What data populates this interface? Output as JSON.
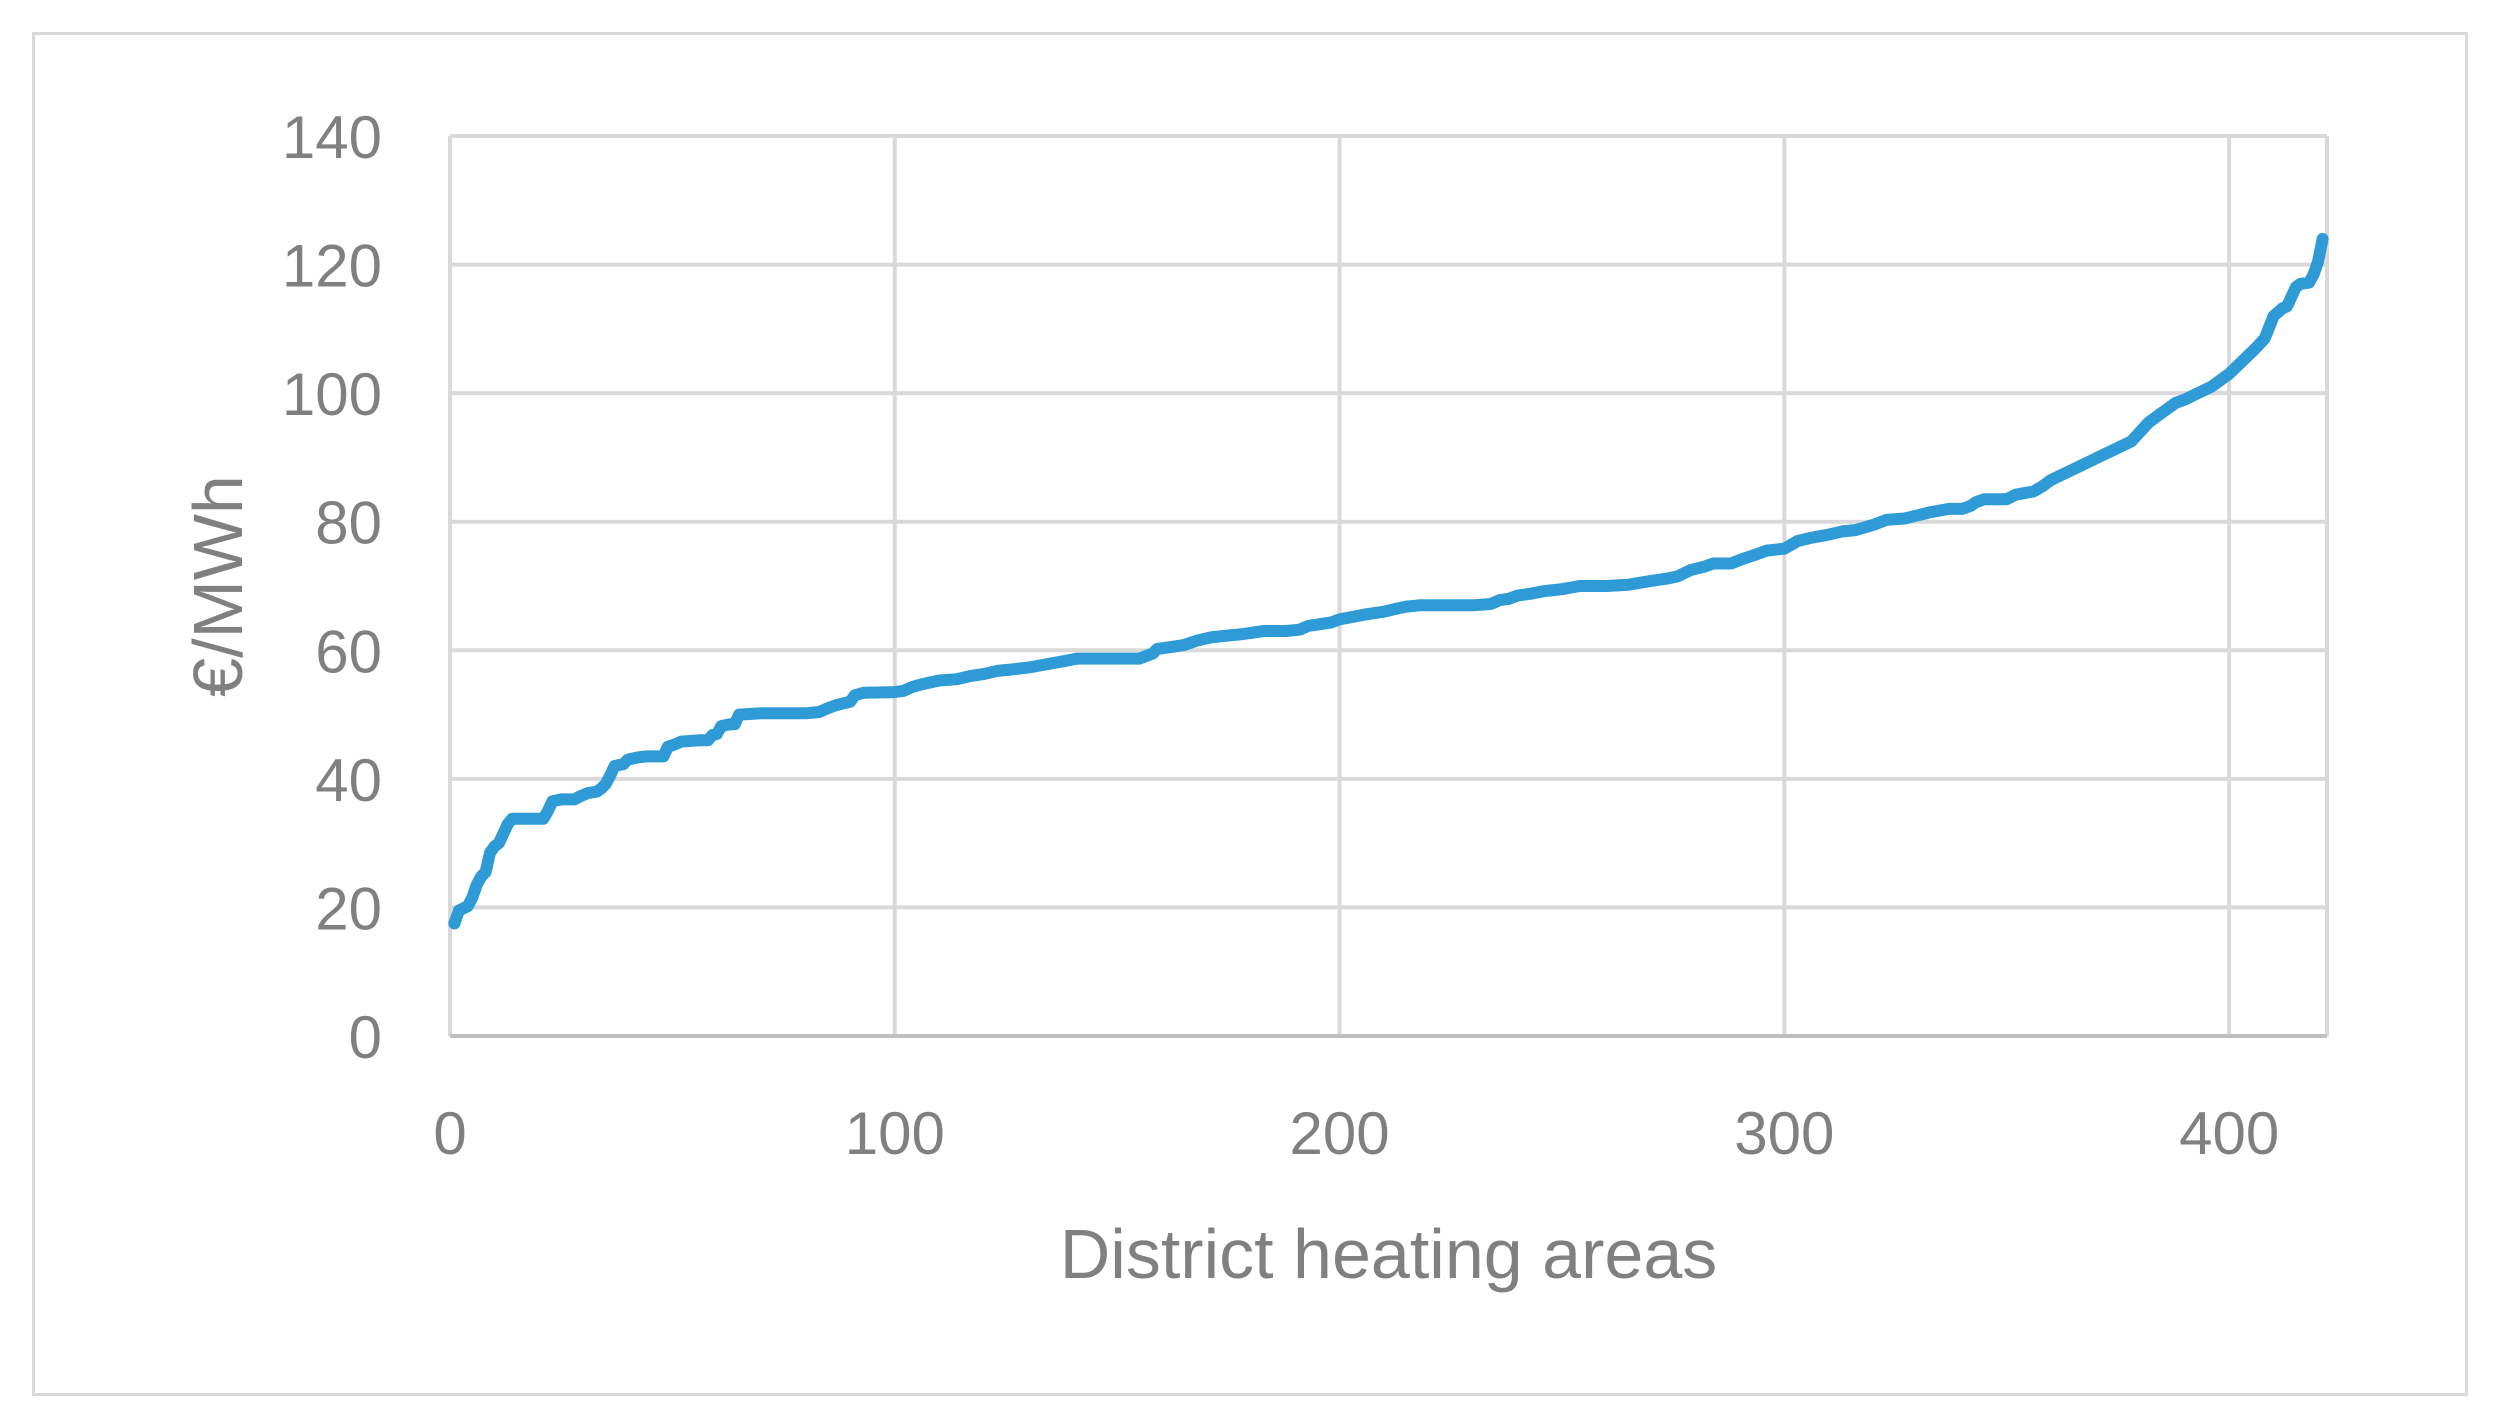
{
  "chart_data": {
    "type": "line",
    "title": "",
    "xlabel": "District heating areas",
    "ylabel": "€/MWh",
    "xlim": [
      0,
      422
    ],
    "ylim": [
      0,
      140
    ],
    "x_ticks": [
      0,
      100,
      200,
      300,
      400
    ],
    "y_ticks": [
      0,
      20,
      40,
      60,
      80,
      100,
      120,
      140
    ],
    "grid": true,
    "legend": "none",
    "line_color": "#2e9bd6",
    "grid_color": "#d9d9d9",
    "axis_color": "#bfbfbf",
    "series": [
      {
        "points": [
          [
            1,
            17.5
          ],
          [
            2,
            19.5
          ],
          [
            4,
            20.2
          ],
          [
            5,
            21.5
          ],
          [
            6,
            23.5
          ],
          [
            7,
            24.8
          ],
          [
            8,
            25.5
          ],
          [
            9,
            28.5
          ],
          [
            10,
            29.5
          ],
          [
            11,
            30
          ],
          [
            12,
            31.5
          ],
          [
            13,
            33
          ],
          [
            14,
            33.8
          ],
          [
            15,
            33.8
          ],
          [
            20,
            33.8
          ],
          [
            21,
            33.8
          ],
          [
            22,
            35
          ],
          [
            23,
            36.5
          ],
          [
            25,
            36.8
          ],
          [
            28,
            36.8
          ],
          [
            29,
            37.2
          ],
          [
            31,
            37.8
          ],
          [
            33,
            38
          ],
          [
            34,
            38.5
          ],
          [
            35,
            39.2
          ],
          [
            36,
            40.5
          ],
          [
            37,
            42
          ],
          [
            39,
            42.3
          ],
          [
            40,
            43
          ],
          [
            42,
            43.3
          ],
          [
            44,
            43.5
          ],
          [
            48,
            43.5
          ],
          [
            49,
            45
          ],
          [
            50,
            45.2
          ],
          [
            52,
            45.8
          ],
          [
            56,
            46
          ],
          [
            58,
            46
          ],
          [
            59,
            46.8
          ],
          [
            60,
            47
          ],
          [
            61,
            48.2
          ],
          [
            63,
            48.5
          ],
          [
            64,
            48.5
          ],
          [
            65,
            50
          ],
          [
            70,
            50.2
          ],
          [
            80,
            50.2
          ],
          [
            83,
            50.4
          ],
          [
            85,
            51
          ],
          [
            87,
            51.5
          ],
          [
            90,
            52
          ],
          [
            91,
            53
          ],
          [
            93,
            53.4
          ],
          [
            100,
            53.5
          ],
          [
            102,
            53.7
          ],
          [
            104,
            54.3
          ],
          [
            106,
            54.7
          ],
          [
            110,
            55.3
          ],
          [
            114,
            55.5
          ],
          [
            117,
            56
          ],
          [
            120,
            56.3
          ],
          [
            123,
            56.8
          ],
          [
            126,
            57
          ],
          [
            130,
            57.3
          ],
          [
            134,
            57.8
          ],
          [
            138,
            58.3
          ],
          [
            141,
            58.7
          ],
          [
            145,
            58.7
          ],
          [
            150,
            58.7
          ],
          [
            155,
            58.7
          ],
          [
            158,
            59.5
          ],
          [
            159,
            60.2
          ],
          [
            162,
            60.5
          ],
          [
            165,
            60.8
          ],
          [
            168,
            61.5
          ],
          [
            171,
            62
          ],
          [
            175,
            62.3
          ],
          [
            178,
            62.5
          ],
          [
            180,
            62.7
          ],
          [
            183,
            63
          ],
          [
            188,
            63
          ],
          [
            191,
            63.2
          ],
          [
            193,
            63.8
          ],
          [
            195,
            64
          ],
          [
            198,
            64.3
          ],
          [
            200,
            64.8
          ],
          [
            203,
            65.2
          ],
          [
            206,
            65.6
          ],
          [
            210,
            66
          ],
          [
            213,
            66.5
          ],
          [
            215,
            66.8
          ],
          [
            218,
            67
          ],
          [
            224,
            67
          ],
          [
            230,
            67
          ],
          [
            234,
            67.2
          ],
          [
            236,
            67.8
          ],
          [
            238,
            68
          ],
          [
            240,
            68.5
          ],
          [
            243,
            68.8
          ],
          [
            246,
            69.2
          ],
          [
            250,
            69.5
          ],
          [
            254,
            70
          ],
          [
            260,
            70
          ],
          [
            265,
            70.2
          ],
          [
            270,
            70.8
          ],
          [
            274,
            71.2
          ],
          [
            276,
            71.5
          ],
          [
            279,
            72.5
          ],
          [
            282,
            73
          ],
          [
            284,
            73.5
          ],
          [
            288,
            73.5
          ],
          [
            291,
            74.3
          ],
          [
            294,
            75
          ],
          [
            296,
            75.5
          ],
          [
            300,
            75.8
          ],
          [
            303,
            77
          ],
          [
            306,
            77.5
          ],
          [
            310,
            78
          ],
          [
            313,
            78.5
          ],
          [
            316,
            78.7
          ],
          [
            320,
            79.5
          ],
          [
            323,
            80.3
          ],
          [
            327,
            80.5
          ],
          [
            330,
            81
          ],
          [
            333,
            81.5
          ],
          [
            337,
            82
          ],
          [
            340,
            82
          ],
          [
            342,
            82.5
          ],
          [
            343,
            83
          ],
          [
            345,
            83.5
          ],
          [
            350,
            83.5
          ],
          [
            352,
            84.2
          ],
          [
            356,
            84.7
          ],
          [
            358,
            85.5
          ],
          [
            360,
            86.5
          ],
          [
            363,
            87.5
          ],
          [
            366,
            88.5
          ],
          [
            369,
            89.5
          ],
          [
            372,
            90.5
          ],
          [
            375,
            91.5
          ],
          [
            378,
            92.5
          ],
          [
            380,
            94
          ],
          [
            382,
            95.5
          ],
          [
            385,
            97
          ],
          [
            388,
            98.5
          ],
          [
            390,
            99
          ],
          [
            393,
            100
          ],
          [
            396,
            101
          ],
          [
            398,
            102
          ],
          [
            400,
            103
          ],
          [
            403,
            105
          ],
          [
            406,
            107
          ],
          [
            408,
            108.5
          ],
          [
            410,
            112
          ],
          [
            412,
            113.2
          ],
          [
            413,
            113.5
          ],
          [
            415,
            116.5
          ],
          [
            416,
            117
          ],
          [
            418,
            117.2
          ],
          [
            419,
            118.5
          ],
          [
            420,
            120.5
          ],
          [
            421,
            124
          ]
        ]
      }
    ]
  }
}
